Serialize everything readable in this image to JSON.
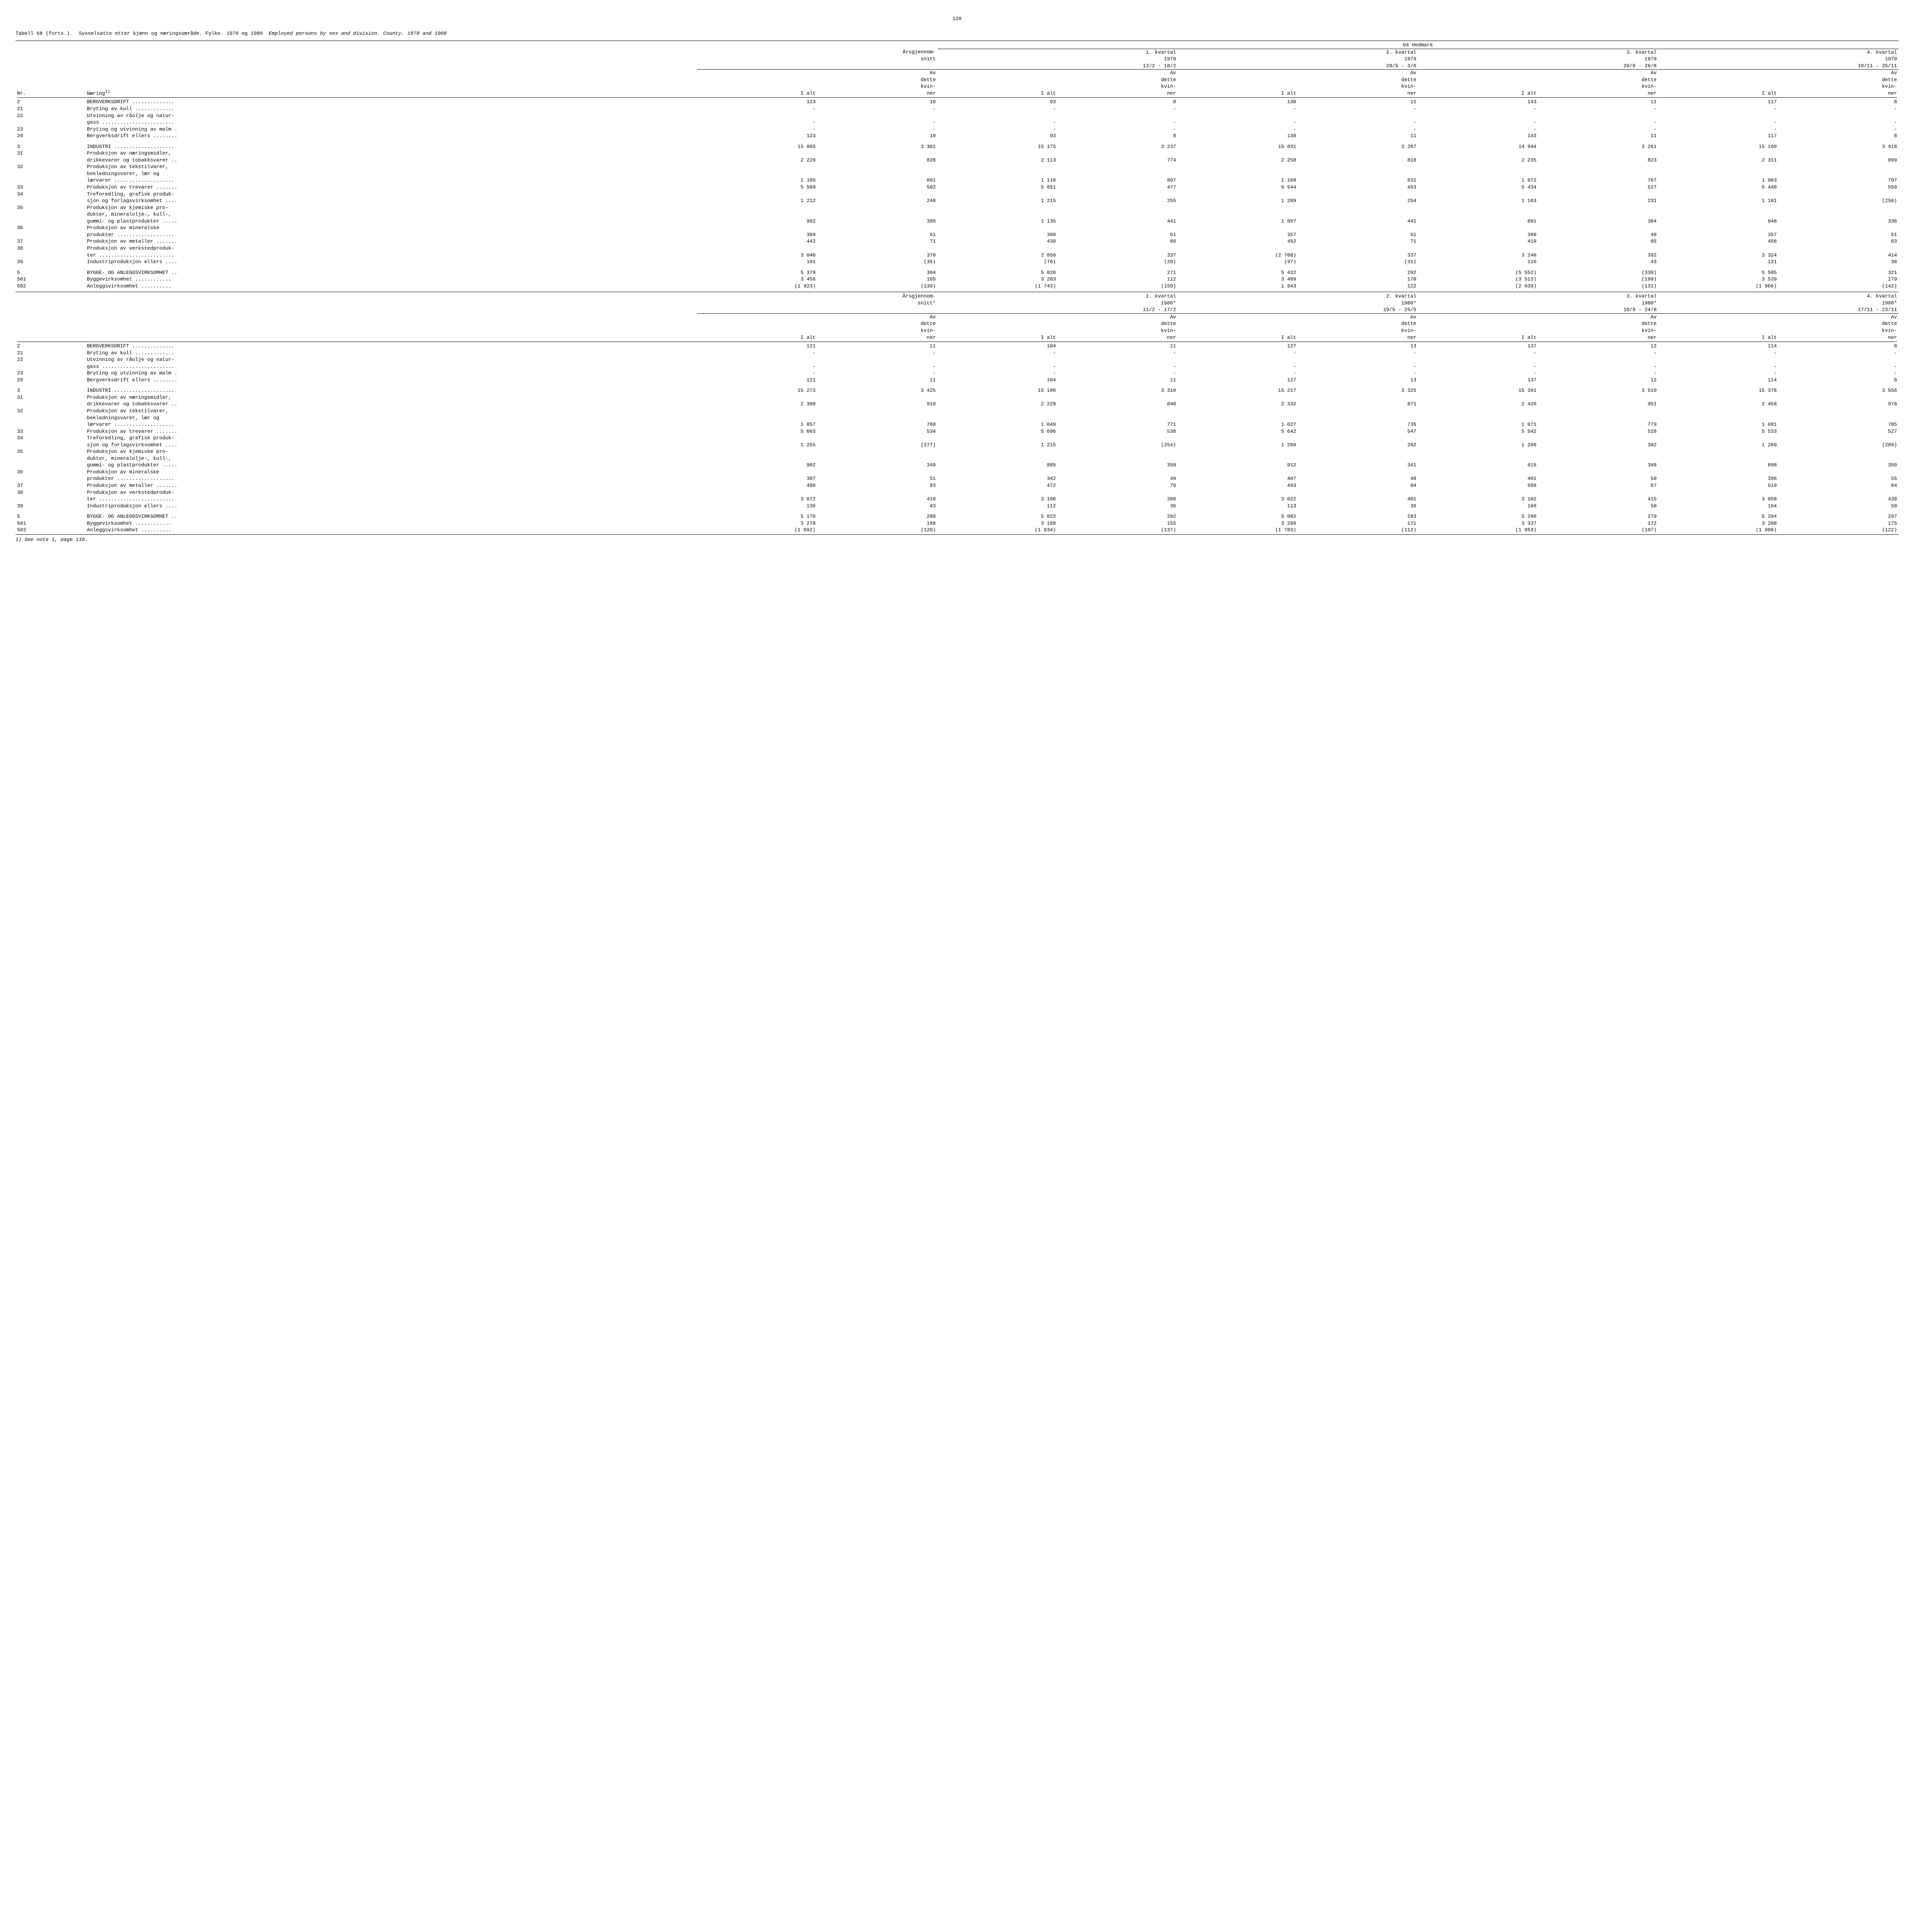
{
  "page_number": "120",
  "table_label": "Tabell 68 (forts.).",
  "title_no": "Sysselsatte etter kjønn og næringsområde.  Fylke.  1979 og 1980",
  "title_en": "Employed persons by sex and division.  County.  1979 and 1980",
  "region": "04 Hedmark",
  "col_nr": "Nr.",
  "col_industry": "Næring",
  "col_industry_sup": "1)",
  "annual_avg": "Årsgjennom-\nsnitt",
  "annual_avg_star": "Årsgjennom-\nsnitt*",
  "ialt": "I alt",
  "av_dette": "Av\ndette\nkvin-\nner",
  "periods_1979": [
    {
      "q": "1. kvartal",
      "y": "1979",
      "d": "12/2 - 18/2"
    },
    {
      "q": "2. kvartal",
      "y": "1979",
      "d": "28/5 - 3/6"
    },
    {
      "q": "3. kvartal",
      "y": "1979",
      "d": "20/8 - 26/8"
    },
    {
      "q": "4. kvartal",
      "y": "1979",
      "d": "19/11 - 25/11"
    }
  ],
  "periods_1980": [
    {
      "q": "1. kvartal",
      "y": "1980*",
      "d": "11/2 - 17/2"
    },
    {
      "q": "2. kvartal",
      "y": "1980*",
      "d": "19/5 - 25/5"
    },
    {
      "q": "3. kvartal",
      "y": "1980*",
      "d": "18/8 - 24/8"
    },
    {
      "q": "4. kvartal",
      "y": "1980*",
      "d": "17/11 - 23/11"
    }
  ],
  "rows_1979": [
    {
      "nr": "2",
      "label": "BERGVERKSDRIFT ..............",
      "v": [
        "123",
        "10",
        "93",
        "8",
        "138",
        "11",
        "143",
        "11",
        "117",
        "8"
      ]
    },
    {
      "nr": "21",
      "label": "Bryting av kull .............",
      "v": [
        "-",
        "-",
        "-",
        "-",
        "-",
        "-",
        "-",
        "-",
        "-",
        "-"
      ]
    },
    {
      "nr": "22",
      "label": "Utvinning av råolje og natur-",
      "v": [
        "",
        "",
        "",
        "",
        "",
        "",
        "",
        "",
        "",
        ""
      ]
    },
    {
      "nr": "",
      "label": "gass ........................",
      "v": [
        "-",
        "-",
        "-",
        "-",
        "-",
        "-",
        "-",
        "-",
        "-",
        "-"
      ]
    },
    {
      "nr": "23",
      "label": "Bryting og utvinning av malm .",
      "v": [
        "-",
        "-",
        "-",
        "-",
        "-",
        "-",
        "-",
        "-",
        "-",
        "-"
      ]
    },
    {
      "nr": "29",
      "label": "Bergverksdrift ellers ........",
      "v": [
        "123",
        "10",
        "93",
        "8",
        "138",
        "11",
        "143",
        "11",
        "117",
        "8"
      ]
    },
    {
      "gap": true
    },
    {
      "nr": "3",
      "label": "INDUSTRI ....................",
      "v": [
        "15 065",
        "3 301",
        "15 175",
        "3 237",
        "15 031",
        "3 287",
        "14 944",
        "3 261",
        "15 109",
        "3 418"
      ]
    },
    {
      "nr": "31",
      "label": "Produksjon av næringsmidler,",
      "v": [
        "",
        "",
        "",
        "",
        "",
        "",
        "",
        "",
        "",
        ""
      ]
    },
    {
      "nr": "",
      "label": "drikkevarer og tobakksvarer ..",
      "v": [
        "2 229",
        "828",
        "2 113",
        "774",
        "2 258",
        "818",
        "2 235",
        "823",
        "2 311",
        "899"
      ]
    },
    {
      "nr": "32",
      "label": "Produksjon av tekstilvarer,",
      "v": [
        "",
        "",
        "",
        "",
        "",
        "",
        "",
        "",
        "",
        ""
      ]
    },
    {
      "nr": "",
      "label": "bekledningsvarer, lær og",
      "v": [
        "",
        "",
        "",
        "",
        "",
        "",
        "",
        "",
        "",
        ""
      ]
    },
    {
      "nr": "",
      "label": "lærvarer ....................",
      "v": [
        "1 105",
        "801",
        "1 116",
        "807",
        "1 169",
        "831",
        "1 072",
        "767",
        "1 063",
        "797"
      ]
    },
    {
      "nr": "33",
      "label": "Produksjon av trevarer .......",
      "v": [
        "5 569",
        "502",
        "5 851",
        "477",
        "5 544",
        "453",
        "5 434",
        "527",
        "5 448",
        "550"
      ]
    },
    {
      "nr": "34",
      "label": "Treforedling, grafisk produk-",
      "v": [
        "",
        "",
        "",
        "",
        "",
        "",
        "",
        "",
        "",
        ""
      ]
    },
    {
      "nr": "",
      "label": "sjon og forlagsvirksomhet ....",
      "v": [
        "1 212",
        "248",
        "1 215",
        "255",
        "1 289",
        "254",
        "1 163",
        "231",
        "1 181",
        "(250)"
      ]
    },
    {
      "nr": "35",
      "label": "Produksjon av kjemiske pro-",
      "v": [
        "",
        "",
        "",
        "",
        "",
        "",
        "",
        "",
        "",
        ""
      ]
    },
    {
      "nr": "",
      "label": "dukter, mineralolje-, kull-,",
      "v": [
        "",
        "",
        "",
        "",
        "",
        "",
        "",
        "",
        "",
        ""
      ]
    },
    {
      "nr": "",
      "label": "gummi- og plastprodukter .....",
      "v": [
        "992",
        "395",
        "1 135",
        "441",
        "1 097",
        "441",
        "891",
        "364",
        "848",
        "336"
      ]
    },
    {
      "nr": "36",
      "label": "Produksjon av mineralske",
      "v": [
        "",
        "",
        "",
        "",
        "",
        "",
        "",
        "",
        "",
        ""
      ]
    },
    {
      "nr": "",
      "label": "produkter ...................",
      "v": [
        "369",
        "51",
        "380",
        "51",
        "357",
        "51",
        "380",
        "49",
        "357",
        "51"
      ]
    },
    {
      "nr": "37",
      "label": "Produksjon av metaller .......",
      "v": [
        "442",
        "71",
        "439",
        "66",
        "452",
        "71",
        "419",
        "65",
        "456",
        "83"
      ]
    },
    {
      "nr": "38",
      "label": "Produksjon av verkstedproduk-",
      "v": [
        "",
        "",
        "",
        "",
        "",
        "",
        "",
        "",
        "",
        ""
      ]
    },
    {
      "nr": "",
      "label": "ter .........................",
      "v": [
        "3 046",
        "370",
        "2 850",
        "337",
        "(2 768)",
        "337",
        "3 240",
        "392",
        "3 324",
        "414"
      ]
    },
    {
      "nr": "39",
      "label": "Industriproduksjon ellers ....",
      "v": [
        "101",
        "(35)",
        "(76)",
        "(29)",
        "(97)",
        "(31)",
        "110",
        "43",
        "121",
        "38"
      ]
    },
    {
      "gap": true
    },
    {
      "nr": "5",
      "label": "BYGGE- OG ANLEGGSVIRKSOMHET ..",
      "v": [
        "5 379",
        "304",
        "5 026",
        "271",
        "5 432",
        "292",
        "(5 552)",
        "(330)",
        "5 505",
        "321"
      ]
    },
    {
      "nr": "501",
      "label": "  Byggevirksomhet ............",
      "v": [
        "3 456",
        "165",
        "3 283",
        "112",
        "3 489",
        "170",
        "(3 513)",
        "(199)",
        "3 539",
        "179"
      ]
    },
    {
      "nr": "502",
      "label": "  Anleggsvirksomhet ..........",
      "v": [
        "(1 923)",
        "(139)",
        "(1 743)",
        "(159)",
        "1 943",
        "122",
        "(2 039)",
        "(131)",
        "(1 966)",
        "(142)"
      ]
    }
  ],
  "rows_1980": [
    {
      "nr": "2",
      "label": "BERGVERKSDRIFT ..............",
      "v": [
        "121",
        "11",
        "104",
        "11",
        "127",
        "13",
        "137",
        "12",
        "114",
        "8"
      ]
    },
    {
      "nr": "21",
      "label": "Bryting av kull .............",
      "v": [
        "-",
        "-",
        "-",
        "-",
        "-",
        "-",
        "-",
        "-",
        "-",
        "-"
      ]
    },
    {
      "nr": "22",
      "label": "Utvinning av råolje og natur-",
      "v": [
        "",
        "",
        "",
        "",
        "",
        "",
        "",
        "",
        "",
        ""
      ]
    },
    {
      "nr": "",
      "label": "gass ........................",
      "v": [
        "-",
        "-",
        "-",
        "-",
        "-",
        "-",
        "-",
        "-",
        "-",
        "-"
      ]
    },
    {
      "nr": "23",
      "label": "Bryting og utvinning av malm .",
      "v": [
        "-",
        "-",
        "-",
        "-",
        "-",
        "-",
        "-",
        "-",
        "-",
        "-"
      ]
    },
    {
      "nr": "29",
      "label": "Bergverksdrift ellers ........",
      "v": [
        "121",
        "11",
        "104",
        "11",
        "127",
        "13",
        "137",
        "12",
        "114",
        "8"
      ]
    },
    {
      "gap": true
    },
    {
      "nr": "3",
      "label": "INDUSTRI ....................",
      "v": [
        "15 273",
        "3 425",
        "15 106",
        "3 310",
        "15 217",
        "3 325",
        "15 391",
        "3 510",
        "15 376",
        "3 556"
      ]
    },
    {
      "nr": "31",
      "label": "Produksjon av næringsmidler,",
      "v": [
        "",
        "",
        "",
        "",
        "",
        "",
        "",
        "",
        "",
        ""
      ]
    },
    {
      "nr": "",
      "label": "drikkevarer og tobakksvarer ..",
      "v": [
        "2 360",
        "910",
        "2 229",
        "840",
        "2 332",
        "871",
        "2 420",
        "951",
        "2 458",
        "978"
      ]
    },
    {
      "nr": "32",
      "label": "Produksjon av tekstilvarer,",
      "v": [
        "",
        "",
        "",
        "",
        "",
        "",
        "",
        "",
        "",
        ""
      ]
    },
    {
      "nr": "",
      "label": "bekledningsvarer, lær og",
      "v": [
        "",
        "",
        "",
        "",
        "",
        "",
        "",
        "",
        "",
        ""
      ]
    },
    {
      "nr": "",
      "label": "lærvarer ....................",
      "v": [
        "1 057",
        "768",
        "1 049",
        "771",
        "1 027",
        "735",
        "1 071",
        "779",
        "1 081",
        "785"
      ]
    },
    {
      "nr": "33",
      "label": "Produksjon av trevarer .......",
      "v": [
        "5 603",
        "534",
        "5 696",
        "536",
        "5 642",
        "547",
        "5 542",
        "528",
        "5 533",
        "527"
      ]
    },
    {
      "nr": "34",
      "label": "Treforedling, grafisk produk-",
      "v": [
        "",
        "",
        "",
        "",
        "",
        "",
        "",
        "",
        "",
        ""
      ]
    },
    {
      "nr": "",
      "label": "sjon og forlagsvirksomhet ....",
      "v": [
        "1 255",
        "(277)",
        "1 215",
        "(254)",
        "1 269",
        "262",
        "1 266",
        "302",
        "1 269",
        "(289)"
      ]
    },
    {
      "nr": "35",
      "label": "Produksjon av kjemiske pro-",
      "v": [
        "",
        "",
        "",
        "",
        "",
        "",
        "",
        "",
        "",
        ""
      ]
    },
    {
      "nr": "",
      "label": "dukter, mineralolje-, kull-,",
      "v": [
        "",
        "",
        "",
        "",
        "",
        "",
        "",
        "",
        "",
        ""
      ]
    },
    {
      "nr": "",
      "label": "gummi- og plastprodukter .....",
      "v": [
        "902",
        "349",
        "885",
        "359",
        "912",
        "341",
        "915",
        "348",
        "898",
        "350"
      ]
    },
    {
      "nr": "36",
      "label": "Produksjon av mineralske",
      "v": [
        "",
        "",
        "",
        "",
        "",
        "",
        "",
        "",
        "",
        ""
      ]
    },
    {
      "nr": "",
      "label": "produkter ...................",
      "v": [
        "387",
        "51",
        "342",
        "49",
        "407",
        "48",
        "401",
        "50",
        "396",
        "55"
      ]
    },
    {
      "nr": "37",
      "label": "Produksjon av metaller .......",
      "v": [
        "498",
        "83",
        "472",
        "79",
        "493",
        "84",
        "508",
        "87",
        "519",
        "84"
      ]
    },
    {
      "nr": "38",
      "label": "Produksjon av verkstedproduk-",
      "v": [
        "",
        "",
        "",
        "",
        "",
        "",
        "",
        "",
        "",
        ""
      ]
    },
    {
      "nr": "",
      "label": "ter .........................",
      "v": [
        "3 072",
        "410",
        "3 106",
        "386",
        "3 022",
        "401",
        "3 102",
        "415",
        "3 058",
        "438"
      ]
    },
    {
      "nr": "39",
      "label": "Industriproduksjon ellers ....",
      "v": [
        "139",
        "43",
        "112",
        "36",
        "113",
        "36",
        "166",
        "50",
        "164",
        "50"
      ]
    },
    {
      "gap": true
    },
    {
      "nr": "5",
      "label": "BYGGE- OG ANLEGGSVIRKSOMHET ..",
      "v": [
        "5 170",
        "288",
        "5 022",
        "292",
        "5 082",
        "283",
        "5 290",
        "279",
        "5 284",
        "297"
      ]
    },
    {
      "nr": "501",
      "label": "  Byggevirksomhet ............",
      "v": [
        "3 278",
        "168",
        "3 188",
        "155",
        "3 299",
        "171",
        "3 337",
        "172",
        "3 288",
        "175"
      ]
    },
    {
      "nr": "502",
      "label": "  Anleggsvirksomhet ..........",
      "v": [
        "(1 892)",
        "(120)",
        "(1 834)",
        "(137)",
        "(1 783)",
        "(112)",
        "(1 953)",
        "(107)",
        "(1 996)",
        "(122)"
      ]
    }
  ],
  "footnote": "1) See note 1, page 116."
}
